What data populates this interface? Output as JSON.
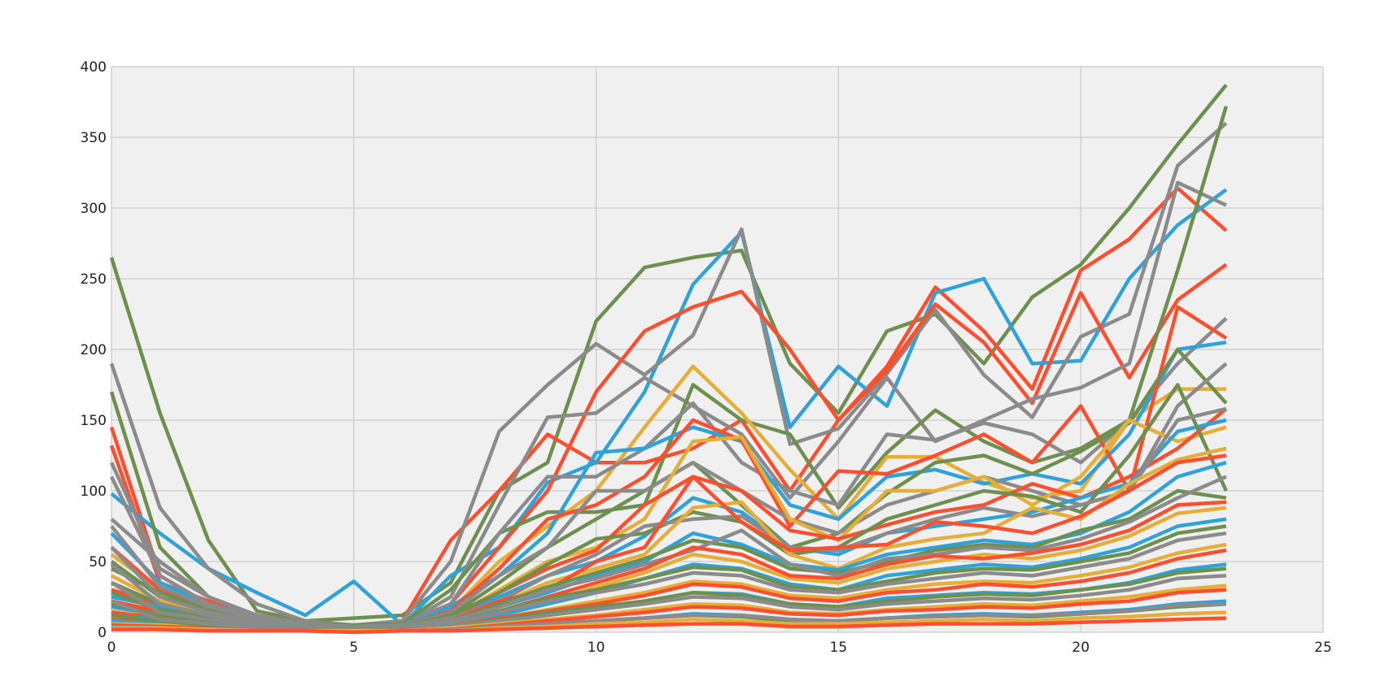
{
  "chart_data": {
    "type": "line",
    "title": "",
    "xlabel": "",
    "ylabel": "",
    "xlim": [
      0,
      25
    ],
    "ylim": [
      0,
      400
    ],
    "x_ticks": [
      0,
      5,
      10,
      15,
      20,
      25
    ],
    "y_ticks": [
      0,
      50,
      100,
      150,
      200,
      250,
      300,
      350,
      400
    ],
    "x_tick_labels": [
      "0",
      "5",
      "10",
      "15",
      "20",
      "25"
    ],
    "y_tick_labels": [
      "0",
      "50",
      "100",
      "150",
      "200",
      "250",
      "300",
      "350",
      "400"
    ],
    "grid": true,
    "legend": "none",
    "colors": {
      "background": "#ffffff",
      "plot_background": "#f0f0f0",
      "grid": "#cbcbcb",
      "palette": [
        "#30a2da",
        "#fc4f30",
        "#e5ae38",
        "#6d904f",
        "#8b8b8b"
      ]
    },
    "x": [
      0,
      1,
      2,
      3,
      4,
      5,
      6,
      7,
      8,
      9,
      10,
      11,
      12,
      13,
      14,
      15,
      16,
      17,
      18,
      19,
      20,
      21,
      22,
      23
    ],
    "series": [
      {
        "color": "#6d904f",
        "values": [
          265,
          155,
          65,
          15,
          8,
          10,
          12,
          35,
          100,
          120,
          220,
          258,
          265,
          270,
          190,
          155,
          213,
          225,
          190,
          237,
          260,
          300,
          345,
          387
        ]
      },
      {
        "color": "#fc4f30",
        "values": [
          145,
          40,
          20,
          10,
          6,
          4,
          8,
          65,
          100,
          140,
          120,
          120,
          130,
          150,
          100,
          150,
          188,
          244,
          213,
          172,
          256,
          278,
          314,
          284
        ]
      },
      {
        "color": "#30a2da",
        "values": [
          98,
          70,
          45,
          28,
          12,
          36,
          5,
          40,
          60,
          106,
          120,
          170,
          246,
          283,
          145,
          188,
          160,
          240,
          250,
          190,
          192,
          250,
          288,
          313
        ]
      },
      {
        "color": "#8b8b8b",
        "values": [
          190,
          88,
          45,
          20,
          8,
          5,
          8,
          50,
          142,
          175,
          204,
          182,
          210,
          285,
          133,
          144,
          183,
          228,
          182,
          152,
          209,
          225,
          330,
          360
        ]
      },
      {
        "color": "#fc4f30",
        "values": [
          132,
          35,
          22,
          12,
          6,
          4,
          6,
          20,
          60,
          100,
          170,
          213,
          230,
          241,
          200,
          150,
          185,
          232,
          205,
          162,
          240,
          180,
          235,
          260
        ]
      },
      {
        "color": "#8b8b8b",
        "values": [
          120,
          45,
          25,
          10,
          5,
          4,
          5,
          25,
          90,
          152,
          155,
          180,
          160,
          140,
          95,
          135,
          180,
          135,
          150,
          165,
          173,
          190,
          318,
          302
        ]
      },
      {
        "color": "#6d904f",
        "values": [
          170,
          60,
          25,
          12,
          6,
          5,
          6,
          30,
          70,
          85,
          85,
          90,
          175,
          150,
          140,
          88,
          127,
          157,
          135,
          120,
          130,
          150,
          256,
          372
        ]
      },
      {
        "color": "#e5ae38",
        "values": [
          55,
          30,
          18,
          10,
          5,
          3,
          5,
          15,
          50,
          75,
          100,
          145,
          188,
          155,
          115,
          80,
          124,
          124,
          106,
          95,
          100,
          150,
          172,
          172
        ]
      },
      {
        "color": "#8b8b8b",
        "values": [
          80,
          50,
          25,
          12,
          6,
          4,
          5,
          20,
          70,
          110,
          110,
          130,
          162,
          120,
          100,
          90,
          140,
          136,
          148,
          140,
          120,
          150,
          190,
          222
        ]
      },
      {
        "color": "#30a2da",
        "values": [
          70,
          35,
          20,
          10,
          5,
          3,
          4,
          18,
          40,
          70,
          127,
          130,
          145,
          135,
          90,
          80,
          110,
          115,
          105,
          112,
          105,
          140,
          200,
          205
        ]
      },
      {
        "color": "#fc4f30",
        "values": [
          60,
          30,
          18,
          9,
          5,
          3,
          4,
          15,
          45,
          80,
          90,
          110,
          150,
          136,
          75,
          114,
          112,
          125,
          140,
          120,
          160,
          100,
          230,
          208
        ]
      },
      {
        "color": "#6d904f",
        "values": [
          50,
          25,
          15,
          8,
          4,
          3,
          4,
          12,
          35,
          60,
          80,
          100,
          120,
          90,
          60,
          70,
          98,
          120,
          125,
          112,
          128,
          148,
          200,
          162
        ]
      },
      {
        "color": "#8b8b8b",
        "values": [
          110,
          40,
          20,
          10,
          5,
          3,
          4,
          14,
          40,
          60,
          100,
          100,
          120,
          100,
          80,
          70,
          90,
          100,
          110,
          100,
          90,
          100,
          160,
          190
        ]
      },
      {
        "color": "#e5ae38",
        "values": [
          40,
          22,
          14,
          8,
          4,
          3,
          3,
          10,
          30,
          50,
          60,
          80,
          135,
          138,
          80,
          65,
          100,
          100,
          110,
          90,
          110,
          150,
          135,
          145
        ]
      },
      {
        "color": "#fc4f30",
        "values": [
          30,
          20,
          12,
          7,
          4,
          3,
          3,
          10,
          28,
          45,
          58,
          90,
          110,
          100,
          72,
          66,
          76,
          85,
          90,
          105,
          95,
          110,
          130,
          158
        ]
      },
      {
        "color": "#30a2da",
        "values": [
          25,
          18,
          12,
          6,
          3,
          2,
          3,
          8,
          25,
          40,
          50,
          68,
          95,
          85,
          60,
          55,
          70,
          75,
          80,
          85,
          95,
          105,
          142,
          150
        ]
      },
      {
        "color": "#6d904f",
        "values": [
          45,
          28,
          16,
          9,
          5,
          3,
          4,
          12,
          28,
          48,
          66,
          70,
          85,
          78,
          55,
          60,
          80,
          90,
          100,
          96,
          85,
          125,
          175,
          100
        ]
      },
      {
        "color": "#8b8b8b",
        "values": [
          75,
          32,
          18,
          10,
          5,
          3,
          4,
          10,
          22,
          40,
          55,
          75,
          80,
          82,
          60,
          58,
          70,
          80,
          88,
          82,
          90,
          100,
          150,
          158
        ]
      },
      {
        "color": "#e5ae38",
        "values": [
          20,
          14,
          10,
          6,
          3,
          2,
          3,
          7,
          20,
          35,
          45,
          55,
          88,
          92,
          55,
          45,
          60,
          66,
          70,
          88,
          80,
          105,
          122,
          130
        ]
      },
      {
        "color": "#fc4f30",
        "values": [
          22,
          15,
          10,
          6,
          3,
          2,
          3,
          8,
          22,
          30,
          50,
          60,
          110,
          78,
          58,
          60,
          62,
          78,
          75,
          70,
          82,
          100,
          120,
          125
        ]
      },
      {
        "color": "#30a2da",
        "values": [
          18,
          12,
          8,
          5,
          3,
          2,
          3,
          6,
          18,
          28,
          40,
          50,
          70,
          62,
          48,
          44,
          55,
          60,
          65,
          62,
          70,
          85,
          110,
          120
        ]
      },
      {
        "color": "#6d904f",
        "values": [
          35,
          20,
          12,
          7,
          4,
          3,
          3,
          8,
          20,
          32,
          42,
          52,
          65,
          60,
          45,
          42,
          50,
          58,
          62,
          60,
          72,
          80,
          100,
          95
        ]
      },
      {
        "color": "#8b8b8b",
        "values": [
          60,
          25,
          14,
          8,
          4,
          3,
          3,
          8,
          18,
          30,
          38,
          48,
          58,
          72,
          48,
          40,
          52,
          55,
          60,
          58,
          66,
          78,
          95,
          110
        ]
      },
      {
        "color": "#e5ae38",
        "values": [
          15,
          10,
          7,
          4,
          2,
          2,
          2,
          5,
          14,
          22,
          32,
          42,
          55,
          50,
          38,
          35,
          45,
          50,
          55,
          52,
          58,
          68,
          84,
          88
        ]
      },
      {
        "color": "#fc4f30",
        "values": [
          14,
          10,
          7,
          4,
          2,
          2,
          2,
          5,
          15,
          25,
          35,
          45,
          60,
          55,
          40,
          38,
          48,
          54,
          52,
          56,
          62,
          72,
          90,
          92
        ]
      },
      {
        "color": "#30a2da",
        "values": [
          12,
          9,
          6,
          4,
          2,
          2,
          2,
          4,
          12,
          20,
          28,
          38,
          48,
          45,
          34,
          30,
          40,
          44,
          48,
          46,
          52,
          60,
          75,
          80
        ]
      },
      {
        "color": "#6d904f",
        "values": [
          28,
          16,
          10,
          6,
          3,
          2,
          3,
          6,
          15,
          24,
          30,
          38,
          46,
          44,
          32,
          30,
          36,
          42,
          45,
          44,
          50,
          56,
          70,
          75
        ]
      },
      {
        "color": "#8b8b8b",
        "values": [
          48,
          20,
          12,
          7,
          4,
          2,
          3,
          6,
          14,
          22,
          28,
          34,
          42,
          40,
          30,
          28,
          34,
          38,
          42,
          40,
          46,
          52,
          65,
          70
        ]
      },
      {
        "color": "#e5ae38",
        "values": [
          10,
          8,
          6,
          3,
          2,
          1,
          2,
          4,
          10,
          16,
          22,
          28,
          36,
          34,
          26,
          24,
          30,
          34,
          36,
          35,
          40,
          46,
          56,
          62
        ]
      },
      {
        "color": "#fc4f30",
        "values": [
          9,
          7,
          5,
          3,
          2,
          1,
          2,
          4,
          10,
          15,
          20,
          26,
          34,
          32,
          24,
          22,
          28,
          30,
          34,
          32,
          36,
          42,
          52,
          58
        ]
      },
      {
        "color": "#30a2da",
        "values": [
          8,
          6,
          4,
          3,
          2,
          1,
          2,
          3,
          8,
          12,
          17,
          22,
          28,
          27,
          20,
          18,
          24,
          26,
          28,
          27,
          30,
          35,
          44,
          48
        ]
      },
      {
        "color": "#6d904f",
        "values": [
          20,
          12,
          8,
          5,
          3,
          2,
          2,
          4,
          9,
          14,
          18,
          22,
          28,
          26,
          20,
          18,
          22,
          25,
          27,
          26,
          30,
          34,
          42,
          45
        ]
      },
      {
        "color": "#8b8b8b",
        "values": [
          35,
          14,
          9,
          5,
          3,
          2,
          2,
          4,
          8,
          12,
          16,
          20,
          25,
          24,
          18,
          16,
          20,
          22,
          24,
          23,
          26,
          30,
          38,
          40
        ]
      },
      {
        "color": "#e5ae38",
        "values": [
          6,
          5,
          4,
          2,
          1,
          1,
          1,
          3,
          6,
          9,
          12,
          16,
          20,
          19,
          14,
          13,
          16,
          18,
          20,
          19,
          22,
          25,
          30,
          33
        ]
      },
      {
        "color": "#fc4f30",
        "values": [
          5,
          4,
          3,
          2,
          1,
          1,
          1,
          2,
          5,
          8,
          11,
          14,
          18,
          17,
          13,
          12,
          15,
          16,
          18,
          17,
          20,
          22,
          28,
          30
        ]
      },
      {
        "color": "#30a2da",
        "values": [
          4,
          3,
          2,
          2,
          1,
          1,
          1,
          2,
          4,
          6,
          8,
          10,
          13,
          12,
          9,
          8,
          10,
          12,
          13,
          12,
          14,
          16,
          20,
          22
        ]
      },
      {
        "color": "#6d904f",
        "values": [
          12,
          8,
          5,
          3,
          2,
          1,
          1,
          2,
          4,
          6,
          8,
          10,
          12,
          11,
          8,
          8,
          10,
          11,
          12,
          11,
          13,
          15,
          18,
          20
        ]
      },
      {
        "color": "#8b8b8b",
        "values": [
          22,
          9,
          6,
          3,
          2,
          1,
          1,
          2,
          4,
          6,
          8,
          10,
          12,
          12,
          9,
          8,
          10,
          11,
          12,
          12,
          13,
          15,
          19,
          20
        ]
      },
      {
        "color": "#e5ae38",
        "values": [
          3,
          3,
          2,
          1,
          1,
          1,
          1,
          1,
          3,
          4,
          6,
          7,
          9,
          8,
          6,
          6,
          7,
          8,
          9,
          8,
          10,
          11,
          13,
          14
        ]
      },
      {
        "color": "#fc4f30",
        "values": [
          2,
          2,
          1,
          1,
          1,
          0,
          1,
          1,
          2,
          3,
          4,
          5,
          6,
          6,
          4,
          4,
          5,
          6,
          6,
          6,
          7,
          8,
          9,
          10
        ]
      }
    ]
  }
}
